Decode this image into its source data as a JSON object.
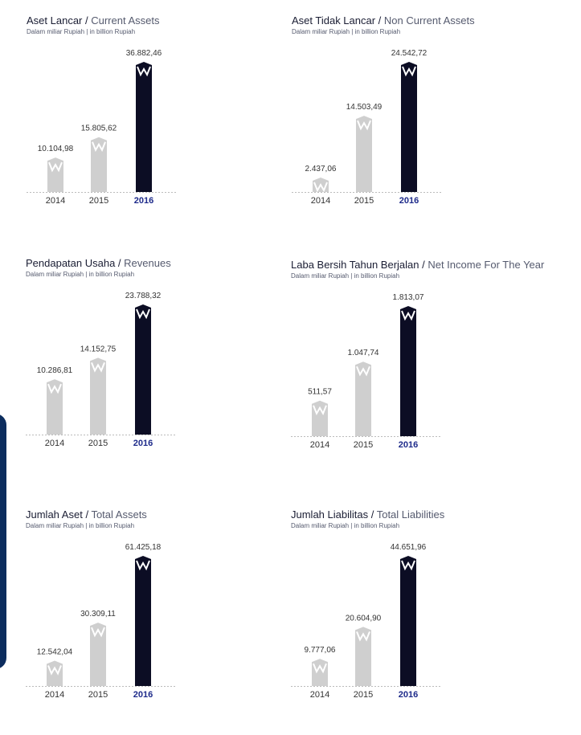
{
  "colors": {
    "past": "#cfcfcf",
    "current": "#0c0d24",
    "highlight_tick": "#1d2a8a",
    "side_tab": "#0c2d5e"
  },
  "icons": {
    "bar_cap": "w-logo-icon"
  },
  "chart_data": [
    {
      "type": "bar",
      "title_local": "Aset Lancar",
      "title_en": "Current Assets",
      "subtitle": "Dalam miliar Rupiah | in billion Rupiah",
      "categories": [
        "2014",
        "2015",
        "2016"
      ],
      "values": [
        10104.98,
        15805.62,
        36882.46
      ],
      "labels": [
        "10.104,98",
        "15.805,62",
        "36.882,46"
      ],
      "ylim": [
        0,
        36882.46
      ]
    },
    {
      "type": "bar",
      "title_local": "Aset Tidak Lancar",
      "title_en": "Non Current Assets",
      "subtitle": "Dalam miliar Rupiah | in billion Rupiah",
      "categories": [
        "2014",
        "2015",
        "2016"
      ],
      "values": [
        2437.06,
        14503.49,
        24542.72
      ],
      "labels": [
        "2.437,06",
        "14.503,49",
        "24.542,72"
      ],
      "ylim": [
        0,
        24542.72
      ]
    },
    {
      "type": "bar",
      "title_local": "Pendapatan Usaha",
      "title_en": "Revenues",
      "subtitle": "Dalam miliar Rupiah | in billion Rupiah",
      "categories": [
        "2014",
        "2015",
        "2016"
      ],
      "values": [
        10286.81,
        14152.75,
        23788.32
      ],
      "labels": [
        "10.286,81",
        "14.152,75",
        "23.788,32"
      ],
      "ylim": [
        0,
        23788.32
      ]
    },
    {
      "type": "bar",
      "title_local": "Laba Bersih Tahun Berjalan",
      "title_en": "Net Income For The Year",
      "subtitle": "Dalam miliar Rupiah | in billion Rupiah",
      "categories": [
        "2014",
        "2015",
        "2016"
      ],
      "values": [
        511.57,
        1047.74,
        1813.07
      ],
      "labels": [
        "511,57",
        "1.047,74",
        "1.813,07"
      ],
      "ylim": [
        0,
        1813.07
      ]
    },
    {
      "type": "bar",
      "title_local": "Jumlah Aset",
      "title_en": "Total Assets",
      "subtitle": "Dalam miliar Rupiah | in billion Rupiah",
      "categories": [
        "2014",
        "2015",
        "2016"
      ],
      "values": [
        12542.04,
        30309.11,
        61425.18
      ],
      "labels": [
        "12.542,04",
        "30.309,11",
        "61.425,18"
      ],
      "ylim": [
        0,
        61425.18
      ]
    },
    {
      "type": "bar",
      "title_local": "Jumlah Liabilitas",
      "title_en": "Total Liabilities",
      "subtitle": "Dalam miliar Rupiah | in billion Rupiah",
      "categories": [
        "2014",
        "2015",
        "2016"
      ],
      "values": [
        9777.06,
        20604.9,
        44651.96
      ],
      "labels": [
        "9.777,06",
        "20.604,90",
        "44.651,96"
      ],
      "ylim": [
        0,
        44651.96
      ]
    }
  ]
}
